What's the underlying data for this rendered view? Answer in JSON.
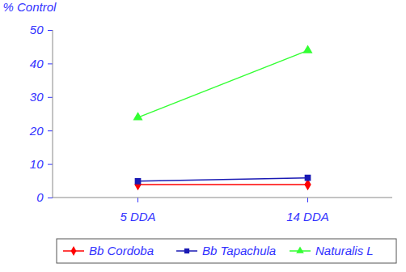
{
  "chart_data": {
    "type": "line",
    "y_label": "% Control",
    "categories": [
      "5 DDA",
      "14 DDA"
    ],
    "series": [
      {
        "name": "Bb Cordoba",
        "color": "#ff0000",
        "marker": "diamond",
        "values": [
          4,
          4
        ]
      },
      {
        "name": "Bb Tapachula",
        "color": "#1a1ab4",
        "marker": "square",
        "values": [
          5,
          6
        ]
      },
      {
        "name": "Naturalis L",
        "color": "#33ff33",
        "marker": "triangle",
        "values": [
          24,
          44
        ]
      }
    ],
    "ylim": [
      0,
      50
    ],
    "yticks": [
      0,
      10,
      20,
      30,
      40,
      50
    ],
    "grid": false,
    "legend": "bottom"
  }
}
